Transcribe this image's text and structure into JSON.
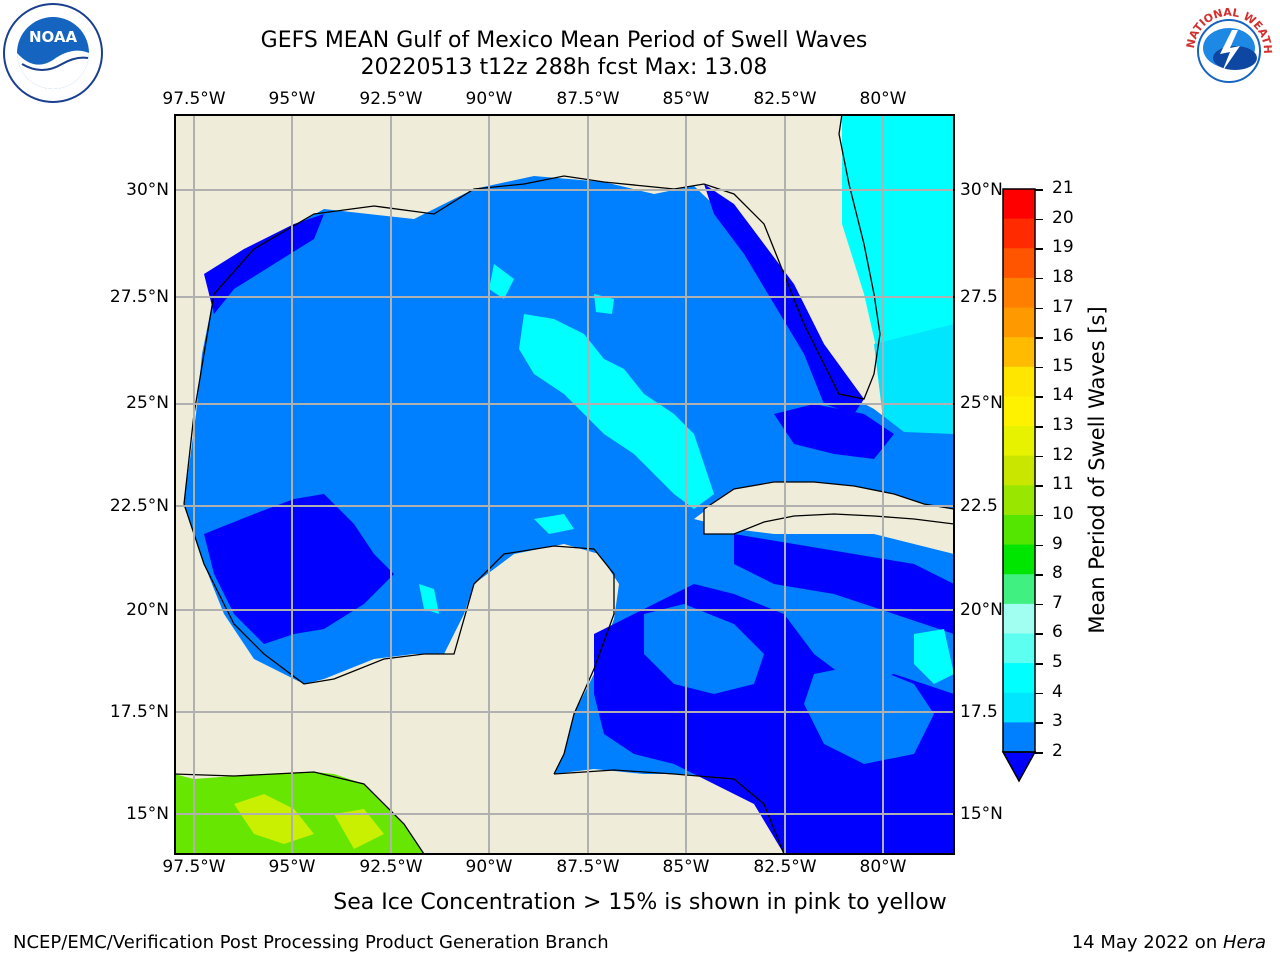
{
  "title": {
    "line1": "GEFS MEAN Gulf of Mexico Mean Period of Swell Waves",
    "line2": "20220513 t12z 288h fcst   Max: 13.08"
  },
  "x_ticks": [
    "97.5°W",
    "95°W",
    "92.5°W",
    "90°W",
    "87.5°W",
    "85°W",
    "82.5°W",
    "80°W"
  ],
  "y_ticks_left": [
    "30°N",
    "27.5°N",
    "25°N",
    "22.5°N",
    "20°N",
    "17.5°N",
    "15°N"
  ],
  "y_ticks_right": [
    "30°N",
    "27.5",
    "25°N",
    "22.5",
    "20°N",
    "17.5",
    "15°N"
  ],
  "colorbar": {
    "label": "Mean Period of Swell Waves [s]",
    "ticks": [
      "21",
      "20",
      "19",
      "18",
      "17",
      "16",
      "15",
      "14",
      "13",
      "12",
      "11",
      "10",
      "9",
      "8",
      "7",
      "6",
      "5",
      "4",
      "3",
      "2"
    ],
    "colors": [
      "#ff0000",
      "#ff2a00",
      "#ff5500",
      "#ff7f00",
      "#ff9900",
      "#ffbb00",
      "#ffe600",
      "#fff200",
      "#e6f200",
      "#c8e600",
      "#99e600",
      "#55e600",
      "#00e600",
      "#40f080",
      "#a0fff0",
      "#5cfff0",
      "#00ffff",
      "#00e6ff",
      "#0080ff",
      "#0000ff"
    ]
  },
  "caption": "Sea Ice Concentration > 15% is shown in pink to yellow",
  "footer_left": "NCEP/EMC/Verification Post Processing Product Generation Branch",
  "footer_right_prefix": "14 May 2022 on ",
  "footer_right_italic": "Hera",
  "logos": {
    "left": "NOAA",
    "right": "NATIONAL WEATHER SERVICE"
  }
}
